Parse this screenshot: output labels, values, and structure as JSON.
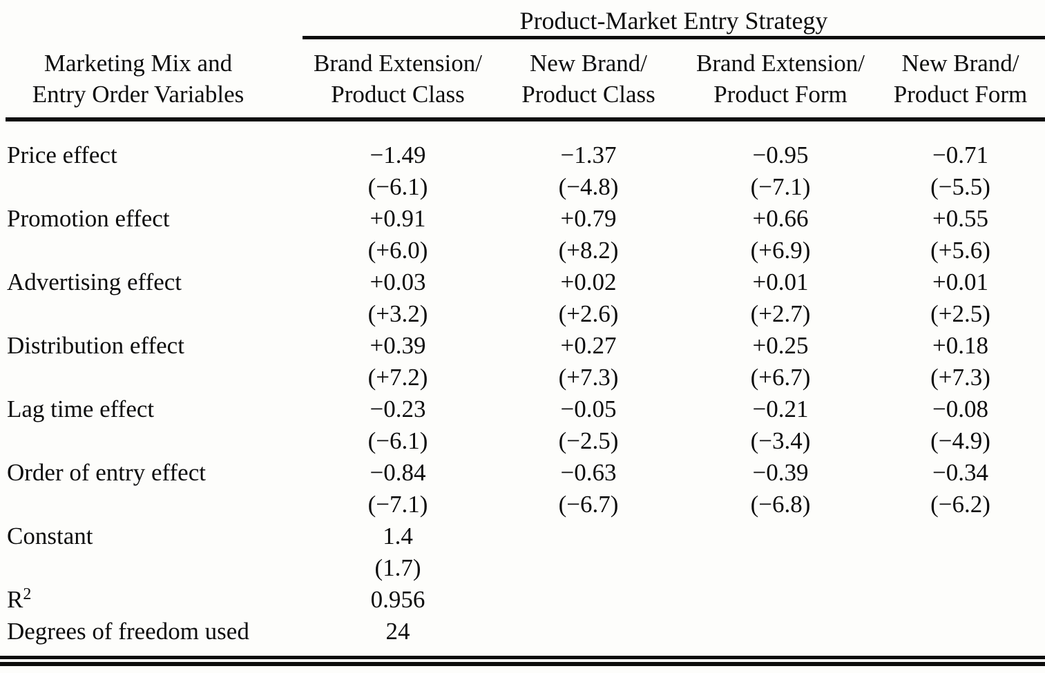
{
  "header": {
    "title": "Product-Market Entry Strategy",
    "stub_label_line1": "Marketing Mix and",
    "stub_label_line2": "Entry Order Variables",
    "columns": [
      {
        "line1": "Brand Extension/",
        "line2": "Product Class"
      },
      {
        "line1": "New Brand/",
        "line2": "Product Class"
      },
      {
        "line1": "Brand Extension/",
        "line2": "Product Form"
      },
      {
        "line1": "New Brand/",
        "line2": "Product Form"
      }
    ]
  },
  "table": {
    "rows": [
      {
        "label": "Price effect",
        "cells": [
          {
            "v": "−1.49",
            "t": "(−6.1)"
          },
          {
            "v": "−1.37",
            "t": "(−4.8)"
          },
          {
            "v": "−0.95",
            "t": "(−7.1)"
          },
          {
            "v": "−0.71",
            "t": "(−5.5)"
          }
        ]
      },
      {
        "label": "Promotion effect",
        "cells": [
          {
            "v": "+0.91",
            "t": "(+6.0)"
          },
          {
            "v": "+0.79",
            "t": "(+8.2)"
          },
          {
            "v": "+0.66",
            "t": "(+6.9)"
          },
          {
            "v": "+0.55",
            "t": "(+5.6)"
          }
        ]
      },
      {
        "label": "Advertising effect",
        "cells": [
          {
            "v": "+0.03",
            "t": "(+3.2)"
          },
          {
            "v": "+0.02",
            "t": "(+2.6)"
          },
          {
            "v": "+0.01",
            "t": "(+2.7)"
          },
          {
            "v": "+0.01",
            "t": "(+2.5)"
          }
        ]
      },
      {
        "label": "Distribution effect",
        "cells": [
          {
            "v": "+0.39",
            "t": "(+7.2)"
          },
          {
            "v": "+0.27",
            "t": "(+7.3)"
          },
          {
            "v": "+0.25",
            "t": "(+6.7)"
          },
          {
            "v": "+0.18",
            "t": "(+7.3)"
          }
        ]
      },
      {
        "label": "Lag time effect",
        "cells": [
          {
            "v": "−0.23",
            "t": "(−6.1)"
          },
          {
            "v": "−0.05",
            "t": "(−2.5)"
          },
          {
            "v": "−0.21",
            "t": "(−3.4)"
          },
          {
            "v": "−0.08",
            "t": "(−4.9)"
          }
        ]
      },
      {
        "label": "Order of entry effect",
        "cells": [
          {
            "v": "−0.84",
            "t": "(−7.1)"
          },
          {
            "v": "−0.63",
            "t": "(−6.7)"
          },
          {
            "v": "−0.39",
            "t": "(−6.8)"
          },
          {
            "v": "−0.34",
            "t": "(−6.2)"
          }
        ]
      },
      {
        "label": "Constant",
        "cells": [
          {
            "v": "1.4",
            "t": "(1.7)"
          },
          {},
          {},
          {}
        ]
      },
      {
        "label": "R",
        "label_sup": "2",
        "cells": [
          {
            "v": "0.956"
          },
          {},
          {},
          {}
        ]
      },
      {
        "label": "Degrees of freedom used",
        "cells": [
          {
            "v": "24"
          },
          {},
          {},
          {}
        ]
      }
    ]
  }
}
